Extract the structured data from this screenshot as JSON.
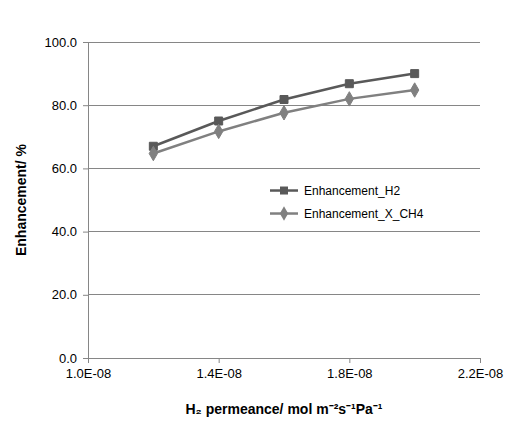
{
  "chart_data": {
    "type": "line",
    "x_label": "H₂ permeance/ mol m⁻²s⁻¹Pa⁻¹",
    "y_label": "Enhancement/ %",
    "x": [
      1.2e-08,
      1.4e-08,
      1.6e-08,
      1.8e-08,
      2e-08
    ],
    "series": [
      {
        "name": "Enhancement_H2",
        "color": "#595959",
        "marker": "square",
        "values": [
          67.0,
          75.0,
          81.8,
          86.8,
          90.0
        ]
      },
      {
        "name": "Enhancement_X_CH4",
        "color": "#808080",
        "marker": "diamond",
        "values": [
          64.7,
          71.7,
          77.6,
          82.0,
          84.8
        ]
      }
    ],
    "xlim": [
      1e-08,
      2.2e-08
    ],
    "xticks": [
      {
        "value": 1e-08,
        "label": "1.0E-08"
      },
      {
        "value": 1.4e-08,
        "label": "1.4E-08"
      },
      {
        "value": 1.8e-08,
        "label": "1.8E-08"
      },
      {
        "value": 2.2e-08,
        "label": "2.2E-08"
      }
    ],
    "ylim": [
      0,
      100
    ],
    "yticks": [
      {
        "value": 0,
        "label": "0.0"
      },
      {
        "value": 20,
        "label": "20.0"
      },
      {
        "value": 40,
        "label": "40.0"
      },
      {
        "value": 60,
        "label": "60.0"
      },
      {
        "value": 80,
        "label": "80.0"
      },
      {
        "value": 100,
        "label": "100.0"
      }
    ],
    "grid": "y",
    "legend": "right"
  }
}
